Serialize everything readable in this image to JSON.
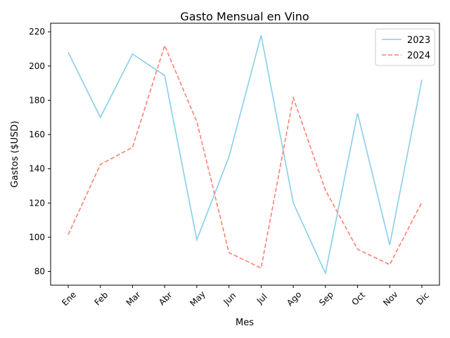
{
  "chart_data": {
    "type": "line",
    "title": "Gasto Mensual en Vino",
    "xlabel": "Mes",
    "ylabel": "Gastos ($USD)",
    "categories": [
      "Ene",
      "Feb",
      "Mar",
      "Abr",
      "May",
      "Jun",
      "Jul",
      "Ago",
      "Sep",
      "Oct",
      "Nov",
      "Dic"
    ],
    "ylim": [
      72,
      225
    ],
    "yticks": [
      80,
      100,
      120,
      140,
      160,
      180,
      200,
      220
    ],
    "grid": false,
    "legend_position": "top-right",
    "series": [
      {
        "name": "2023",
        "color": "#87ceeb",
        "dash": "solid",
        "values": [
          208,
          170,
          207,
          194.5,
          98.5,
          147,
          218,
          120,
          79,
          172.5,
          95.5,
          192
        ]
      },
      {
        "name": "2024",
        "color": "#fa8072",
        "dash": "dashed",
        "values": [
          101.5,
          142.5,
          152.5,
          212,
          167.5,
          91,
          82,
          181.5,
          127.5,
          93,
          84,
          120.5
        ]
      }
    ]
  }
}
